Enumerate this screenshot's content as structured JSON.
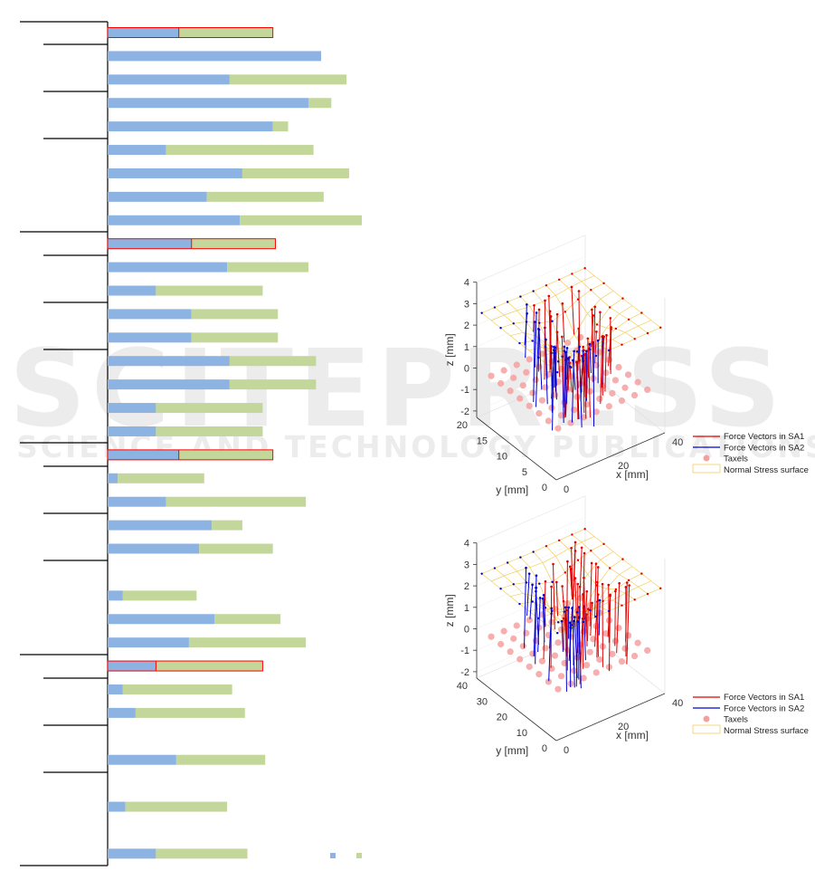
{
  "watermark": {
    "line1": "SCITEPRESS",
    "line2": "SCIENCE AND TECHNOLOGY PUBLICATIONS"
  },
  "colors": {
    "blue": "#8db3e2",
    "green": "#c4d79b",
    "highlight": "#ff0000",
    "taxel": "#f4a0a0",
    "sa1": "#e00000",
    "sa2": "#0000d0",
    "surface": "#f0d060"
  },
  "chart_data": [
    {
      "type": "bar",
      "orientation": "horizontal-stacked",
      "title": "",
      "xlabel": "",
      "ylabel": "",
      "grid": false,
      "legend": "bottom-right",
      "series": [
        {
          "color": "#8db3e2",
          "values": [
            28,
            84,
            48,
            79,
            65,
            23,
            53,
            39,
            52,
            33,
            47,
            19,
            33,
            33,
            48,
            48,
            19,
            19,
            28,
            4,
            23,
            41,
            36,
            null,
            6,
            42,
            32,
            19,
            6,
            11,
            null,
            27,
            null,
            7,
            null,
            19
          ]
        },
        {
          "color": "#c4d79b",
          "values": [
            37,
            0,
            46,
            9,
            6,
            58,
            42,
            46,
            48,
            33,
            32,
            42,
            34,
            34,
            34,
            34,
            42,
            42,
            37,
            34,
            55,
            12,
            29,
            null,
            29,
            26,
            46,
            42,
            43,
            43,
            null,
            35,
            null,
            40,
            null,
            36
          ]
        }
      ],
      "highlighted_rows": [
        0,
        9,
        18,
        27
      ]
    },
    {
      "type": "scatter3d",
      "xlabel": "x [mm]",
      "ylabel": "y [mm]",
      "zlabel": "z [mm]",
      "xticks": [
        "0",
        "20",
        "40"
      ],
      "yticks": [
        "0",
        "5",
        "10",
        "15",
        "20"
      ],
      "zticks": [
        "-2",
        "-1",
        "0",
        "1",
        "2",
        "3",
        "4"
      ],
      "xlim": [
        0,
        40
      ],
      "ylim": [
        0,
        20
      ],
      "zlim": [
        -2.3,
        4
      ],
      "legend": [
        "Force Vectors in SA1",
        "Force Vectors in SA2",
        "Taxels",
        "Normal Stress surface"
      ]
    },
    {
      "type": "scatter3d",
      "xlabel": "x [mm]",
      "ylabel": "y [mm]",
      "zlabel": "z [mm]",
      "xticks": [
        "0",
        "20",
        "40"
      ],
      "yticks": [
        "0",
        "10",
        "20",
        "30",
        "40"
      ],
      "zticks": [
        "-2",
        "-1",
        "0",
        "1",
        "2",
        "3",
        "4"
      ],
      "xlim": [
        0,
        40
      ],
      "ylim": [
        0,
        40
      ],
      "zlim": [
        -2.3,
        4
      ],
      "legend": [
        "Force Vectors in SA1",
        "Force Vectors in SA2",
        "Taxels",
        "Normal Stress surface"
      ]
    }
  ]
}
